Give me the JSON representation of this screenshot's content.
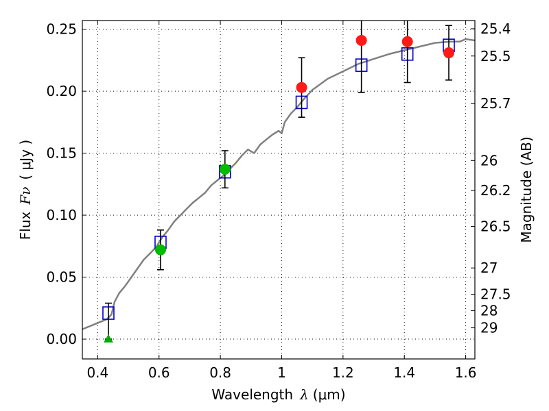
{
  "chart_data": {
    "type": "scatter",
    "title": "",
    "xlabel": "Wavelength",
    "xlabel_symbol": "λ",
    "xlabel_unit": "(μm)",
    "ylabel": "Flux",
    "ylabel_symbol": "Fν",
    "ylabel_unit": "( μJy )",
    "y2label": "Magnitude (AB)",
    "xlim": [
      0.35,
      1.63
    ],
    "ylim": [
      -0.016,
      0.257
    ],
    "grid": true,
    "x_ticks": [
      0.4,
      0.6,
      0.8,
      1.0,
      1.2,
      1.4,
      1.6
    ],
    "x_tick_labels": [
      "0.4",
      "0.6",
      "0.8",
      "1",
      "1.2",
      "1.4",
      "1.6"
    ],
    "y_ticks": [
      0.0,
      0.05,
      0.1,
      0.15,
      0.2,
      0.25
    ],
    "y_tick_labels": [
      "0.00",
      "0.05",
      "0.10",
      "0.15",
      "0.20",
      "0.25"
    ],
    "y2_ticks": [
      {
        "label": "25.4",
        "flux": 0.2504
      },
      {
        "label": "25.5",
        "flux": 0.2284
      },
      {
        "label": "25.7",
        "flux": 0.19
      },
      {
        "label": "26",
        "flux": 0.1441
      },
      {
        "label": "26.2",
        "flux": 0.1199
      },
      {
        "label": "26.5",
        "flux": 0.0909
      },
      {
        "label": "27",
        "flux": 0.0574
      },
      {
        "label": "27.5",
        "flux": 0.0362
      },
      {
        "label": "28",
        "flux": 0.0229
      },
      {
        "label": "29",
        "flux": 0.0091
      }
    ],
    "series": [
      {
        "kind": "sed-model",
        "color": "#808080",
        "x": [
          0.35,
          0.37,
          0.39,
          0.41,
          0.43,
          0.445,
          0.455,
          0.47,
          0.49,
          0.51,
          0.53,
          0.55,
          0.57,
          0.59,
          0.61,
          0.63,
          0.65,
          0.67,
          0.69,
          0.71,
          0.73,
          0.75,
          0.77,
          0.79,
          0.81,
          0.83,
          0.85,
          0.87,
          0.89,
          0.91,
          0.93,
          0.95,
          0.97,
          0.99,
          1.0,
          1.01,
          1.03,
          1.05,
          1.07,
          1.1,
          1.15,
          1.2,
          1.25,
          1.3,
          1.35,
          1.4,
          1.45,
          1.5,
          1.55,
          1.58,
          1.6,
          1.63
        ],
        "y": [
          0.008,
          0.01,
          0.012,
          0.014,
          0.016,
          0.02,
          0.03,
          0.037,
          0.043,
          0.05,
          0.057,
          0.064,
          0.069,
          0.074,
          0.082,
          0.088,
          0.095,
          0.1,
          0.105,
          0.11,
          0.114,
          0.118,
          0.124,
          0.128,
          0.132,
          0.137,
          0.142,
          0.148,
          0.153,
          0.15,
          0.157,
          0.161,
          0.165,
          0.168,
          0.166,
          0.175,
          0.182,
          0.187,
          0.193,
          0.201,
          0.21,
          0.216,
          0.222,
          0.226,
          0.23,
          0.233,
          0.236,
          0.239,
          0.24,
          0.24,
          0.242,
          0.241
        ]
      },
      {
        "kind": "model-photometry",
        "marker": "square",
        "color": "#0000cc",
        "x": [
          0.435,
          0.605,
          0.815,
          1.065,
          1.26,
          1.41,
          1.545
        ],
        "y": [
          0.021,
          0.078,
          0.135,
          0.191,
          0.221,
          0.23,
          0.237
        ]
      },
      {
        "kind": "observed",
        "marker": "circle",
        "color": "#ff1a1a",
        "x": [
          1.065,
          1.26,
          1.41,
          1.545
        ],
        "y": [
          0.203,
          0.241,
          0.24,
          0.231
        ],
        "err": [
          0.024,
          0.042,
          0.033,
          0.022
        ]
      },
      {
        "kind": "observed",
        "marker": "circle",
        "color": "#00bb00",
        "x": [
          0.605,
          0.815
        ],
        "y": [
          0.072,
          0.137
        ],
        "err": [
          0.016,
          0.015
        ]
      },
      {
        "kind": "upper-limit",
        "marker": "triangle",
        "color": "#00aa00",
        "x": [
          0.435
        ],
        "y": [
          0.0
        ],
        "err_up": [
          0.029
        ]
      }
    ]
  }
}
